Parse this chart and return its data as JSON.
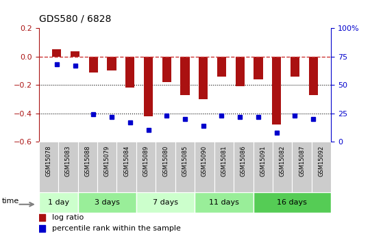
{
  "title": "GDS580 / 6828",
  "samples": [
    "GSM15078",
    "GSM15083",
    "GSM15088",
    "GSM15079",
    "GSM15084",
    "GSM15089",
    "GSM15080",
    "GSM15085",
    "GSM15090",
    "GSM15081",
    "GSM15086",
    "GSM15091",
    "GSM15082",
    "GSM15087",
    "GSM15092"
  ],
  "log_ratio": [
    0.05,
    0.04,
    -0.11,
    -0.1,
    -0.22,
    -0.42,
    -0.18,
    -0.27,
    -0.3,
    -0.14,
    -0.21,
    -0.16,
    -0.48,
    -0.14,
    -0.27
  ],
  "percentile_rank": [
    68,
    67,
    24,
    22,
    17,
    10,
    23,
    20,
    14,
    23,
    22,
    22,
    8,
    23,
    20
  ],
  "groups": [
    {
      "label": "1 day",
      "start": 0,
      "end": 2,
      "color": "#ccffcc"
    },
    {
      "label": "3 days",
      "start": 2,
      "end": 5,
      "color": "#99ee99"
    },
    {
      "label": "7 days",
      "start": 5,
      "end": 8,
      "color": "#ccffcc"
    },
    {
      "label": "11 days",
      "start": 8,
      "end": 11,
      "color": "#99ee99"
    },
    {
      "label": "16 days",
      "start": 11,
      "end": 15,
      "color": "#55cc55"
    }
  ],
  "bar_color": "#aa1111",
  "dot_color": "#0000cc",
  "dashed_line_color": "#cc3333",
  "ylim_left": [
    -0.6,
    0.2
  ],
  "ylim_right": [
    0,
    100
  ],
  "yticks_left": [
    -0.6,
    -0.4,
    -0.2,
    0.0,
    0.2
  ],
  "yticks_right": [
    0,
    25,
    50,
    75,
    100
  ]
}
